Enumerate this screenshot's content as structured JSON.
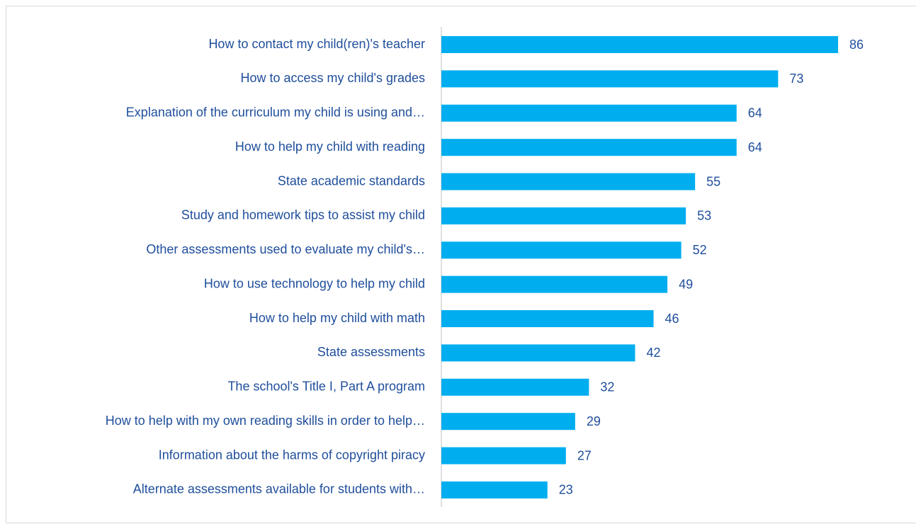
{
  "chart_data": {
    "type": "bar",
    "orientation": "horizontal",
    "color": "#00aeef",
    "categories": [
      "How to contact my child(ren)'s teacher",
      "How to access my child's grades",
      "Explanation of the curriculum my child is using and…",
      "How to help my child with reading",
      "State academic standards",
      "Study and homework tips to assist my child",
      "Other assessments used to evaluate my child's…",
      "How to use technology to help my child",
      "How to help my child with math",
      "State assessments",
      "The school's Title I, Part A program",
      "How to help with my own reading skills in order to help…",
      "Information about the harms of copyright piracy",
      "Alternate assessments available for students with…"
    ],
    "values": [
      86,
      73,
      64,
      64,
      55,
      53,
      52,
      49,
      46,
      42,
      32,
      29,
      27,
      23
    ]
  }
}
